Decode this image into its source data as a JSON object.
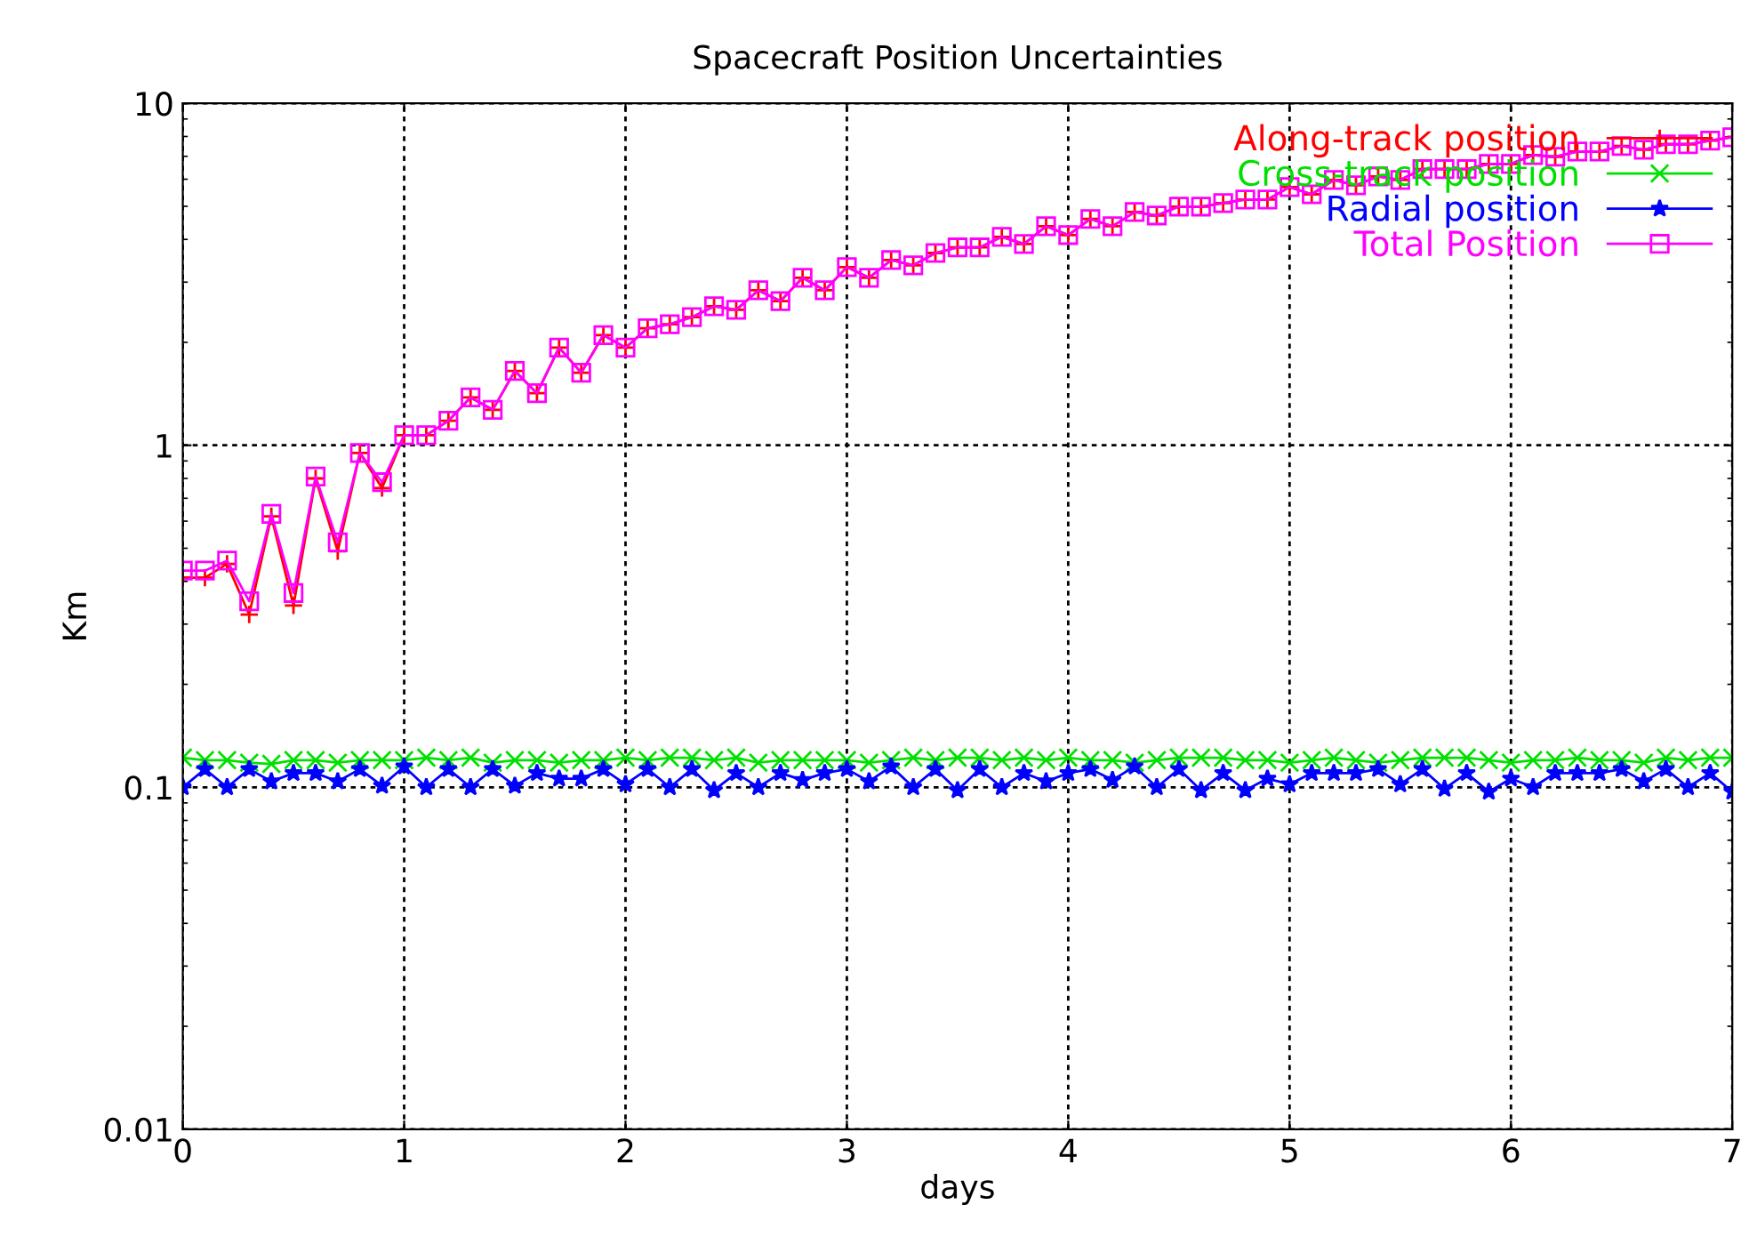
{
  "chart_data": {
    "type": "line",
    "title": "Spacecraft Position Uncertainties",
    "xlabel": "days",
    "ylabel": "Km",
    "x": [
      0,
      0.1,
      0.2,
      0.3,
      0.4,
      0.5,
      0.6,
      0.7,
      0.8,
      0.9,
      1,
      1.1,
      1.2,
      1.3,
      1.4,
      1.5,
      1.6,
      1.7,
      1.8,
      1.9,
      2,
      2.1,
      2.2,
      2.3,
      2.4,
      2.5,
      2.6,
      2.7,
      2.8,
      2.9,
      3,
      3.1,
      3.2,
      3.3,
      3.4,
      3.5,
      3.6,
      3.7,
      3.8,
      3.9,
      4,
      4.1,
      4.2,
      4.3,
      4.4,
      4.5,
      4.6,
      4.7,
      4.8,
      4.9,
      5,
      5.1,
      5.2,
      5.3,
      5.4,
      5.5,
      5.6,
      5.7,
      5.8,
      5.9,
      6,
      6.1,
      6.2,
      6.3,
      6.4,
      6.5,
      6.6,
      6.7,
      6.8,
      6.9,
      7
    ],
    "series": [
      {
        "name": "Along-track position",
        "color": "#ff0000",
        "marker": "plus",
        "values": [
          0.41,
          0.41,
          0.45,
          0.32,
          0.62,
          0.34,
          0.8,
          0.49,
          0.95,
          0.75,
          1.07,
          1.07,
          1.18,
          1.38,
          1.27,
          1.65,
          1.42,
          1.93,
          1.63,
          2.1,
          1.93,
          2.2,
          2.26,
          2.37,
          2.55,
          2.49,
          2.84,
          2.64,
          3.09,
          2.84,
          3.32,
          3.09,
          3.48,
          3.36,
          3.65,
          3.79,
          3.79,
          4.07,
          3.88,
          4.37,
          4.12,
          4.59,
          4.37,
          4.81,
          4.7,
          4.99,
          4.99,
          5.11,
          5.23,
          5.23,
          5.69,
          5.42,
          5.97,
          5.76,
          6.11,
          5.97,
          6.42,
          6.42,
          6.42,
          6.65,
          6.65,
          7.06,
          6.98,
          7.23,
          7.23,
          7.5,
          7.32,
          7.59,
          7.59,
          7.78,
          7.96
        ]
      },
      {
        "name": "Cross-track position",
        "color": "#00e000",
        "marker": "cross",
        "values": [
          0.122,
          0.12,
          0.12,
          0.118,
          0.117,
          0.12,
          0.12,
          0.118,
          0.12,
          0.12,
          0.12,
          0.122,
          0.12,
          0.122,
          0.118,
          0.12,
          0.12,
          0.118,
          0.12,
          0.12,
          0.122,
          0.12,
          0.122,
          0.122,
          0.12,
          0.122,
          0.118,
          0.12,
          0.12,
          0.12,
          0.12,
          0.118,
          0.12,
          0.122,
          0.12,
          0.122,
          0.122,
          0.12,
          0.122,
          0.12,
          0.122,
          0.12,
          0.12,
          0.118,
          0.12,
          0.122,
          0.122,
          0.122,
          0.12,
          0.12,
          0.118,
          0.12,
          0.122,
          0.12,
          0.118,
          0.12,
          0.122,
          0.122,
          0.122,
          0.12,
          0.118,
          0.12,
          0.12,
          0.122,
          0.12,
          0.12,
          0.118,
          0.122,
          0.12,
          0.122,
          0.122
        ]
      },
      {
        "name": "Radial position",
        "color": "#0000ff",
        "marker": "star",
        "values": [
          0.1,
          0.113,
          0.1,
          0.113,
          0.104,
          0.11,
          0.11,
          0.104,
          0.113,
          0.101,
          0.115,
          0.1,
          0.113,
          0.1,
          0.113,
          0.101,
          0.11,
          0.106,
          0.106,
          0.113,
          0.102,
          0.113,
          0.1,
          0.113,
          0.098,
          0.11,
          0.1,
          0.11,
          0.105,
          0.11,
          0.113,
          0.104,
          0.115,
          0.1,
          0.113,
          0.098,
          0.113,
          0.1,
          0.11,
          0.104,
          0.11,
          0.113,
          0.105,
          0.115,
          0.1,
          0.113,
          0.098,
          0.11,
          0.098,
          0.106,
          0.102,
          0.11,
          0.11,
          0.11,
          0.113,
          0.102,
          0.113,
          0.099,
          0.11,
          0.097,
          0.106,
          0.1,
          0.11,
          0.11,
          0.11,
          0.113,
          0.104,
          0.113,
          0.1,
          0.11,
          0.097
        ]
      },
      {
        "name": "Total Position",
        "color": "#ff00ff",
        "marker": "square",
        "values": [
          0.43,
          0.43,
          0.46,
          0.35,
          0.63,
          0.37,
          0.81,
          0.52,
          0.95,
          0.78,
          1.07,
          1.07,
          1.18,
          1.38,
          1.27,
          1.65,
          1.42,
          1.93,
          1.63,
          2.1,
          1.93,
          2.2,
          2.26,
          2.37,
          2.55,
          2.49,
          2.84,
          2.64,
          3.09,
          2.84,
          3.32,
          3.09,
          3.48,
          3.36,
          3.65,
          3.79,
          3.79,
          4.07,
          3.88,
          4.37,
          4.12,
          4.59,
          4.37,
          4.81,
          4.7,
          4.99,
          4.99,
          5.11,
          5.23,
          5.23,
          5.69,
          5.42,
          5.97,
          5.76,
          6.11,
          5.97,
          6.42,
          6.42,
          6.42,
          6.65,
          6.65,
          7.06,
          6.98,
          7.23,
          7.23,
          7.5,
          7.32,
          7.59,
          7.59,
          7.78,
          7.96
        ]
      }
    ],
    "log": "y",
    "xlim": [
      0,
      7
    ],
    "ylim": [
      0.01,
      10
    ],
    "xticks": [
      0,
      1,
      2,
      3,
      4,
      5,
      6,
      7
    ],
    "yticks": [
      0.01,
      0.1,
      1,
      10
    ],
    "grid": true,
    "legend": "top right",
    "line_style": "solid"
  }
}
